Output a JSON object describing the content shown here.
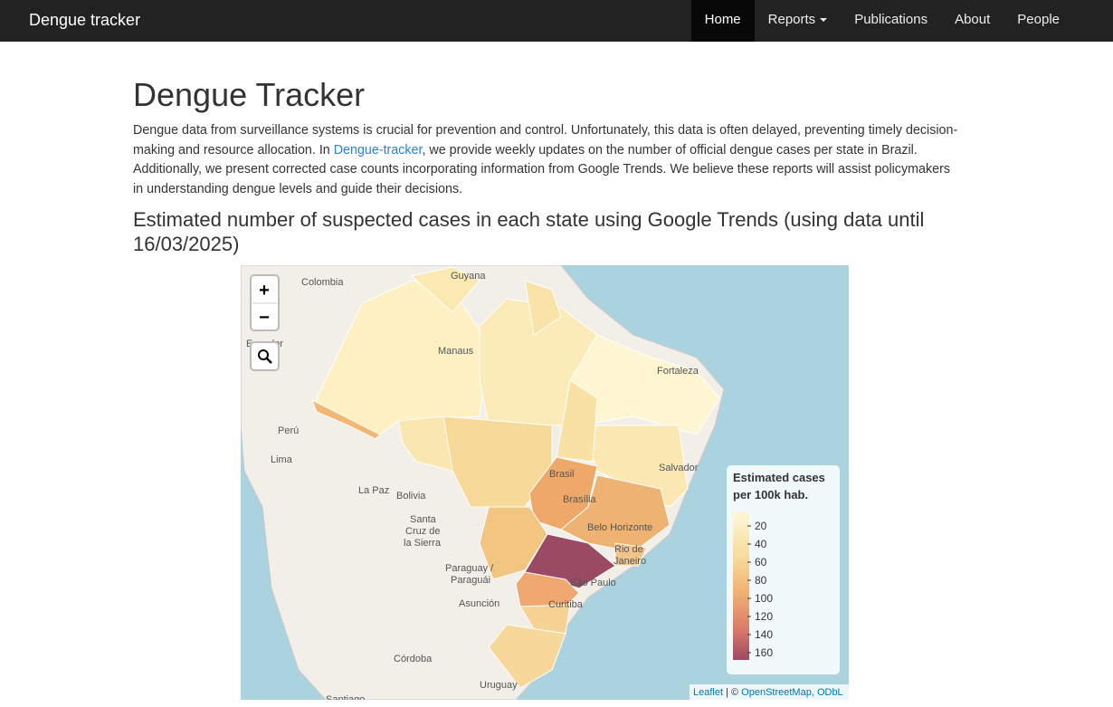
{
  "navbar": {
    "brand": "Dengue tracker",
    "items": [
      "Home",
      "Reports",
      "Publications",
      "About",
      "People"
    ]
  },
  "page": {
    "title": "Dengue Tracker",
    "intro": {
      "before": "Dengue data from surveillance systems is crucial for prevention and control. Unfortunately, this data is often delayed, preventing timely decision-making and resource allocation. In ",
      "link": "Dengue-tracker",
      "after": ", we provide weekly updates on the number of official dengue cases per state in Brazil. Additionally, we present corrected case counts incorporating information from Google Trends. We believe these reports will assist policymakers in understanding dengue levels and guide their decisions."
    },
    "subtitle": "Estimated number of suspected cases in each state using Google Trends (using data until 16/03/2025)"
  },
  "map": {
    "zoom_in": "+",
    "zoom_out": "−",
    "places": [
      "Colombia",
      "Guyana",
      "Ecuador",
      "Manaus",
      "Fortaleza",
      "Perú",
      "Lima",
      "La Paz",
      "Bolivia",
      "Santa",
      "Cruz de",
      "la Sierra",
      "Brasil",
      "Brasília",
      "Salvador",
      "Belo Horizonte",
      "Rio de",
      "Janeiro",
      "Paraguay /",
      "Paraguái",
      "São Paulo",
      "Asunción",
      "Curitiba",
      "Córdoba",
      "Uruguay",
      "Santiago"
    ],
    "legend": {
      "title_line1": "Estimated cases",
      "title_line2": "per 100k hab.",
      "ticks": [
        20,
        40,
        60,
        80,
        100,
        120,
        140,
        160
      ]
    },
    "attribution": {
      "leaflet": "Leaflet",
      "sep": " | © ",
      "osm": "OpenStreetMap, ODbL"
    }
  }
}
